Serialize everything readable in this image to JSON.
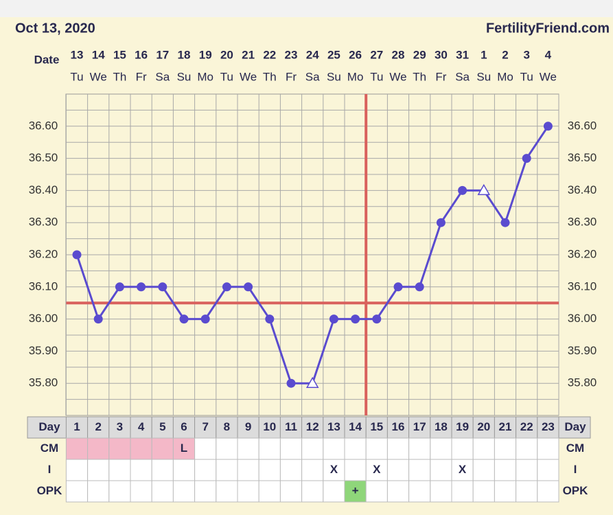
{
  "header": {
    "date": "Oct 13, 2020",
    "site": "FertilityFriend.com"
  },
  "chart_data": {
    "type": "line",
    "date_label": "Date",
    "dates": [
      13,
      14,
      15,
      16,
      17,
      18,
      19,
      20,
      21,
      22,
      23,
      24,
      25,
      26,
      27,
      28,
      29,
      30,
      31,
      1,
      2,
      3,
      4
    ],
    "weekdays": [
      "Tu",
      "We",
      "Th",
      "Fr",
      "Sa",
      "Su",
      "Mo",
      "Tu",
      "We",
      "Th",
      "Fr",
      "Sa",
      "Su",
      "Mo",
      "Tu",
      "We",
      "Th",
      "Fr",
      "Sa",
      "Su",
      "Mo",
      "Tu",
      "We"
    ],
    "day_label": "Day",
    "days": [
      1,
      2,
      3,
      4,
      5,
      6,
      7,
      8,
      9,
      10,
      11,
      12,
      13,
      14,
      15,
      16,
      17,
      18,
      19,
      20,
      21,
      22,
      23
    ],
    "series": [
      {
        "color": "#5a4bcf",
        "values": [
          36.2,
          36.0,
          36.1,
          36.1,
          36.1,
          36.0,
          36.0,
          36.1,
          36.1,
          36.0,
          35.8,
          35.8,
          36.0,
          36.0,
          36.0,
          36.1,
          36.1,
          36.3,
          36.4,
          36.4,
          36.3,
          36.5,
          36.6
        ],
        "markers": [
          "circle",
          "circle",
          "circle",
          "circle",
          "circle",
          "circle",
          "circle",
          "circle",
          "circle",
          "circle",
          "circle",
          "triangle",
          "circle",
          "circle",
          "circle",
          "circle",
          "circle",
          "circle",
          "circle",
          "triangle",
          "circle",
          "circle",
          "circle"
        ]
      }
    ],
    "ylim": [
      35.7,
      36.7
    ],
    "yticks": [
      {
        "value": 35.8,
        "label": "35.80"
      },
      {
        "value": 35.9,
        "label": "35.90"
      },
      {
        "value": 36.0,
        "label": "36.00"
      },
      {
        "value": 36.1,
        "label": "36.10"
      },
      {
        "value": 36.2,
        "label": "36.20"
      },
      {
        "value": 36.3,
        "label": "36.30"
      },
      {
        "value": 36.4,
        "label": "36.40"
      },
      {
        "value": 36.5,
        "label": "36.50"
      },
      {
        "value": 36.6,
        "label": "36.60"
      }
    ],
    "grid": true,
    "coverline": 36.05,
    "ovulation_day": 15,
    "line_color": "#d9615d",
    "rows": [
      {
        "label": "CM",
        "cells": [
          null,
          null,
          null,
          null,
          null,
          "L",
          null,
          null,
          null,
          null,
          null,
          null,
          null,
          null,
          null,
          null,
          null,
          null,
          null,
          null,
          null,
          null,
          null
        ],
        "colors": [
          "#f4b8c8",
          "#f4b8c8",
          "#f4b8c8",
          "#f4b8c8",
          "#f4b8c8",
          "#f4b8c8",
          null,
          null,
          null,
          null,
          null,
          null,
          null,
          null,
          null,
          null,
          null,
          null,
          null,
          null,
          null,
          null,
          null
        ]
      },
      {
        "label": "I",
        "cells": [
          null,
          null,
          null,
          null,
          null,
          null,
          null,
          null,
          null,
          null,
          null,
          null,
          "X",
          null,
          "X",
          null,
          null,
          null,
          "X",
          null,
          null,
          null,
          null
        ],
        "colors": [
          null,
          null,
          null,
          null,
          null,
          null,
          null,
          null,
          null,
          null,
          null,
          null,
          null,
          null,
          null,
          null,
          null,
          null,
          null,
          null,
          null,
          null,
          null
        ]
      },
      {
        "label": "OPK",
        "cells": [
          null,
          null,
          null,
          null,
          null,
          null,
          null,
          null,
          null,
          null,
          null,
          null,
          null,
          "+",
          null,
          null,
          null,
          null,
          null,
          null,
          null,
          null,
          null
        ],
        "colors": [
          null,
          null,
          null,
          null,
          null,
          null,
          null,
          null,
          null,
          null,
          null,
          null,
          null,
          "#8fd67a",
          null,
          null,
          null,
          null,
          null,
          null,
          null,
          null,
          null
        ]
      }
    ]
  }
}
